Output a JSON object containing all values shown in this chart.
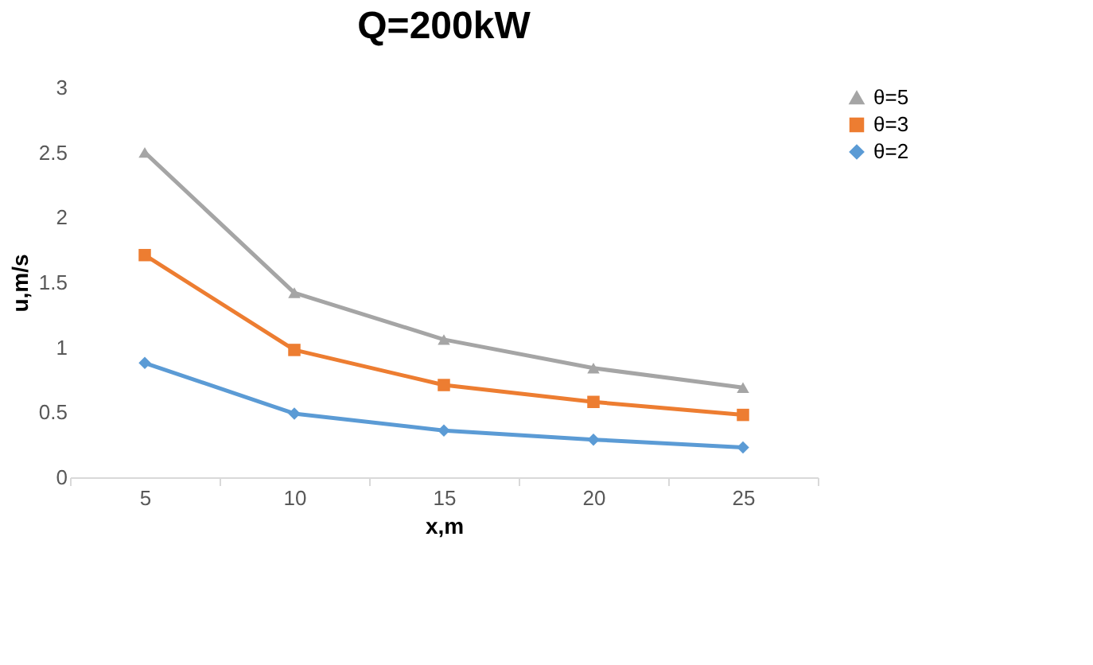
{
  "chart_data": {
    "type": "line",
    "title": "Q=200kW",
    "xlabel": "x,m",
    "ylabel": "u,m/s",
    "categories": [
      "5",
      "10",
      "15",
      "20",
      "25"
    ],
    "series": [
      {
        "name": "θ=5",
        "color": "#a5a5a5",
        "marker": "triangle",
        "values": [
          2.5,
          1.42,
          1.06,
          0.84,
          0.69
        ]
      },
      {
        "name": "θ=3",
        "color": "#ed7d31",
        "marker": "square",
        "values": [
          1.71,
          0.98,
          0.71,
          0.58,
          0.48
        ]
      },
      {
        "name": "θ=2",
        "color": "#5b9bd5",
        "marker": "diamond",
        "values": [
          0.88,
          0.49,
          0.36,
          0.29,
          0.23
        ]
      }
    ],
    "ylim": [
      0,
      3
    ],
    "yticks": [
      0,
      0.5,
      1,
      1.5,
      2,
      2.5,
      3
    ],
    "grid": false,
    "legend": "right"
  }
}
